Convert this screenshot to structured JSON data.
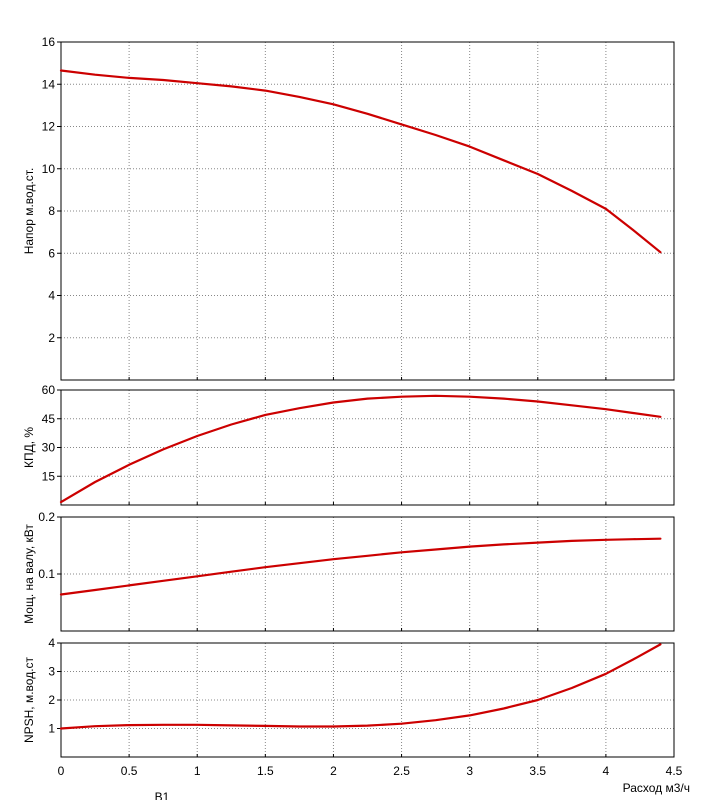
{
  "chart_data": [
    {
      "type": "line",
      "ylabel": "Напор м.вод.ст.",
      "xlim": [
        0,
        4.5
      ],
      "ylim": [
        0,
        16
      ],
      "yticks": [
        2,
        4,
        6,
        8,
        10,
        12,
        14,
        16
      ],
      "grid": true,
      "series": [
        {
          "color": "#cc0000",
          "x": [
            0,
            0.25,
            0.5,
            0.75,
            1.0,
            1.25,
            1.5,
            1.75,
            2.0,
            2.25,
            2.5,
            2.75,
            3.0,
            3.25,
            3.5,
            3.75,
            4.0,
            4.2,
            4.4
          ],
          "y": [
            14.65,
            14.45,
            14.3,
            14.2,
            14.05,
            13.9,
            13.7,
            13.4,
            13.05,
            12.6,
            12.1,
            11.6,
            11.05,
            10.4,
            9.75,
            8.95,
            8.1,
            7.1,
            6.05
          ]
        }
      ]
    },
    {
      "type": "line",
      "ylabel": "КПД, %",
      "xlim": [
        0,
        4.5
      ],
      "ylim": [
        0,
        60
      ],
      "yticks": [
        15,
        30,
        45,
        60
      ],
      "grid": true,
      "series": [
        {
          "color": "#cc0000",
          "x": [
            0,
            0.25,
            0.5,
            0.75,
            1.0,
            1.25,
            1.5,
            1.75,
            2.0,
            2.25,
            2.5,
            2.75,
            3.0,
            3.25,
            3.5,
            3.75,
            4.0,
            4.2,
            4.4
          ],
          "y": [
            1.5,
            12,
            21,
            29,
            36,
            42,
            47,
            50.5,
            53.5,
            55.5,
            56.5,
            57,
            56.5,
            55.5,
            54,
            52,
            50,
            48,
            46
          ]
        }
      ]
    },
    {
      "type": "line",
      "ylabel": "Мощ. на валу, кВт",
      "xlim": [
        0,
        4.5
      ],
      "ylim": [
        0,
        0.2
      ],
      "yticks": [
        0.1,
        0.2
      ],
      "grid": true,
      "series": [
        {
          "color": "#cc0000",
          "x": [
            0,
            0.25,
            0.5,
            0.75,
            1.0,
            1.25,
            1.5,
            1.75,
            2.0,
            2.25,
            2.5,
            2.75,
            3.0,
            3.25,
            3.5,
            3.75,
            4.0,
            4.2,
            4.4
          ],
          "y": [
            0.064,
            0.072,
            0.08,
            0.088,
            0.096,
            0.104,
            0.112,
            0.119,
            0.126,
            0.132,
            0.138,
            0.143,
            0.148,
            0.152,
            0.155,
            0.158,
            0.16,
            0.161,
            0.162
          ]
        }
      ]
    },
    {
      "type": "line",
      "ylabel": "NPSH, м.вод.ст",
      "xlabel": "Расход м3/ч",
      "xlim": [
        0,
        4.5
      ],
      "ylim": [
        0,
        4
      ],
      "yticks": [
        1,
        2,
        3,
        4
      ],
      "xticks": [
        0,
        0.5,
        1,
        1.5,
        2,
        2.5,
        3,
        3.5,
        4,
        4.5
      ],
      "grid": true,
      "series": [
        {
          "color": "#cc0000",
          "x": [
            0,
            0.25,
            0.5,
            0.75,
            1.0,
            1.25,
            1.5,
            1.75,
            2.0,
            2.25,
            2.5,
            2.75,
            3.0,
            3.25,
            3.5,
            3.75,
            4.0,
            4.2,
            4.4
          ],
          "y": [
            1.0,
            1.08,
            1.12,
            1.13,
            1.13,
            1.11,
            1.09,
            1.07,
            1.07,
            1.1,
            1.17,
            1.29,
            1.46,
            1.7,
            2.0,
            2.42,
            2.92,
            3.42,
            3.95
          ]
        }
      ]
    }
  ],
  "footer_text": "В1"
}
